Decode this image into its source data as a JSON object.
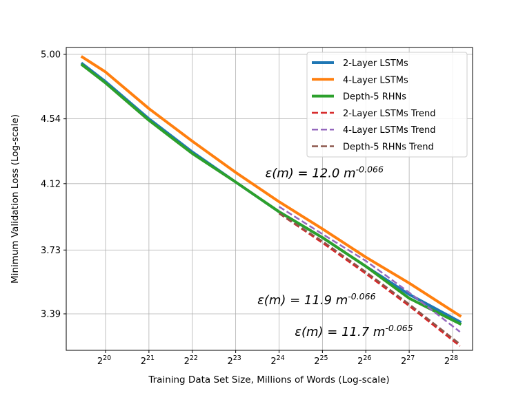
{
  "chart_data": {
    "type": "line",
    "xlabel": "Training Data Set Size, Millions of Words (Log-scale)",
    "ylabel": "Minimum Validation Loss (Log-scale)",
    "x_scale": "log2",
    "y_scale": "log",
    "xlim": [
      1.03,
      2.28
    ],
    "ylim": [
      3.1,
      5.2
    ],
    "grid": true,
    "legend_position": "top-right",
    "x_ticks": [
      {
        "value": 1048576,
        "base": "2",
        "exp": "20"
      },
      {
        "value": 2097152,
        "base": "2",
        "exp": "21"
      },
      {
        "value": 4194304,
        "base": "2",
        "exp": "22"
      },
      {
        "value": 8388608,
        "base": "2",
        "exp": "23"
      },
      {
        "value": 16777216,
        "base": "2",
        "exp": "24"
      },
      {
        "value": 33554432,
        "base": "2",
        "exp": "25"
      },
      {
        "value": 67108864,
        "base": "2",
        "exp": "26"
      },
      {
        "value": 134217728,
        "base": "2",
        "exp": "27"
      },
      {
        "value": 268435456,
        "base": "2",
        "exp": "28"
      }
    ],
    "y_ticks": [
      {
        "value": 3.39,
        "label": "3.39"
      },
      {
        "value": 3.73,
        "label": "3.73"
      },
      {
        "value": 4.12,
        "label": "4.12"
      },
      {
        "value": 4.54,
        "label": "4.54"
      },
      {
        "value": 5.0,
        "label": "5.00"
      }
    ],
    "series": [
      {
        "name": "2-Layer LSTMs",
        "color": "#1f77b4",
        "style": "solid",
        "points": [
          [
            724079,
            4.93
          ],
          [
            1048576,
            4.8
          ],
          [
            2097152,
            4.54
          ],
          [
            4194304,
            4.32
          ],
          [
            8388608,
            4.13
          ],
          [
            16777216,
            3.95
          ],
          [
            33554432,
            3.8
          ],
          [
            67108864,
            3.64
          ],
          [
            134217728,
            3.49
          ],
          [
            301989888,
            3.35
          ]
        ]
      },
      {
        "name": "4-Layer LSTMs",
        "color": "#ff7f0e",
        "style": "solid",
        "points": [
          [
            724079,
            4.98
          ],
          [
            1048576,
            4.87
          ],
          [
            2097152,
            4.61
          ],
          [
            4194304,
            4.39
          ],
          [
            8388608,
            4.19
          ],
          [
            16777216,
            4.01
          ],
          [
            33554432,
            3.85
          ],
          [
            67108864,
            3.69
          ],
          [
            134217728,
            3.55
          ],
          [
            301989888,
            3.38
          ]
        ]
      },
      {
        "name": "Depth-5 RHNs",
        "color": "#2ca02c",
        "style": "solid",
        "points": [
          [
            724079,
            4.92
          ],
          [
            1048576,
            4.79
          ],
          [
            2097152,
            4.53
          ],
          [
            4194304,
            4.31
          ],
          [
            8388608,
            4.13
          ],
          [
            16777216,
            3.95
          ],
          [
            33554432,
            3.8
          ],
          [
            67108864,
            3.64
          ],
          [
            134217728,
            3.47
          ],
          [
            301989888,
            3.34
          ]
        ]
      },
      {
        "name": "2-Layer LSTMs Trend",
        "color": "#d62728",
        "style": "dashed",
        "points": [
          [
            16777216,
            3.94
          ],
          [
            33554432,
            3.77
          ],
          [
            67108864,
            3.6
          ],
          [
            134217728,
            3.43
          ],
          [
            301989888,
            3.23
          ]
        ]
      },
      {
        "name": "4-Layer LSTMs Trend",
        "color": "#9467bd",
        "style": "dashed",
        "points": [
          [
            16777216,
            3.98
          ],
          [
            33554432,
            3.82
          ],
          [
            67108864,
            3.67
          ],
          [
            134217728,
            3.5
          ],
          [
            301989888,
            3.3
          ]
        ]
      },
      {
        "name": "Depth-5 RHNs Trend",
        "color": "#8c564b",
        "style": "dashed",
        "points": [
          [
            16777216,
            3.94
          ],
          [
            33554432,
            3.78
          ],
          [
            67108864,
            3.61
          ],
          [
            134217728,
            3.44
          ],
          [
            301989888,
            3.24
          ]
        ]
      }
    ],
    "annotations": [
      {
        "base": "ε(m) = 12.0 m",
        "exp": "-0.066",
        "x": 13454411,
        "y": 4.16
      },
      {
        "base": "ε(m) = 11.9 m",
        "exp": "-0.066",
        "x": 11864210,
        "y": 3.44
      },
      {
        "base": "ε(m) = 11.7 m",
        "exp": "-0.065",
        "x": 21557000,
        "y": 3.28
      }
    ]
  }
}
